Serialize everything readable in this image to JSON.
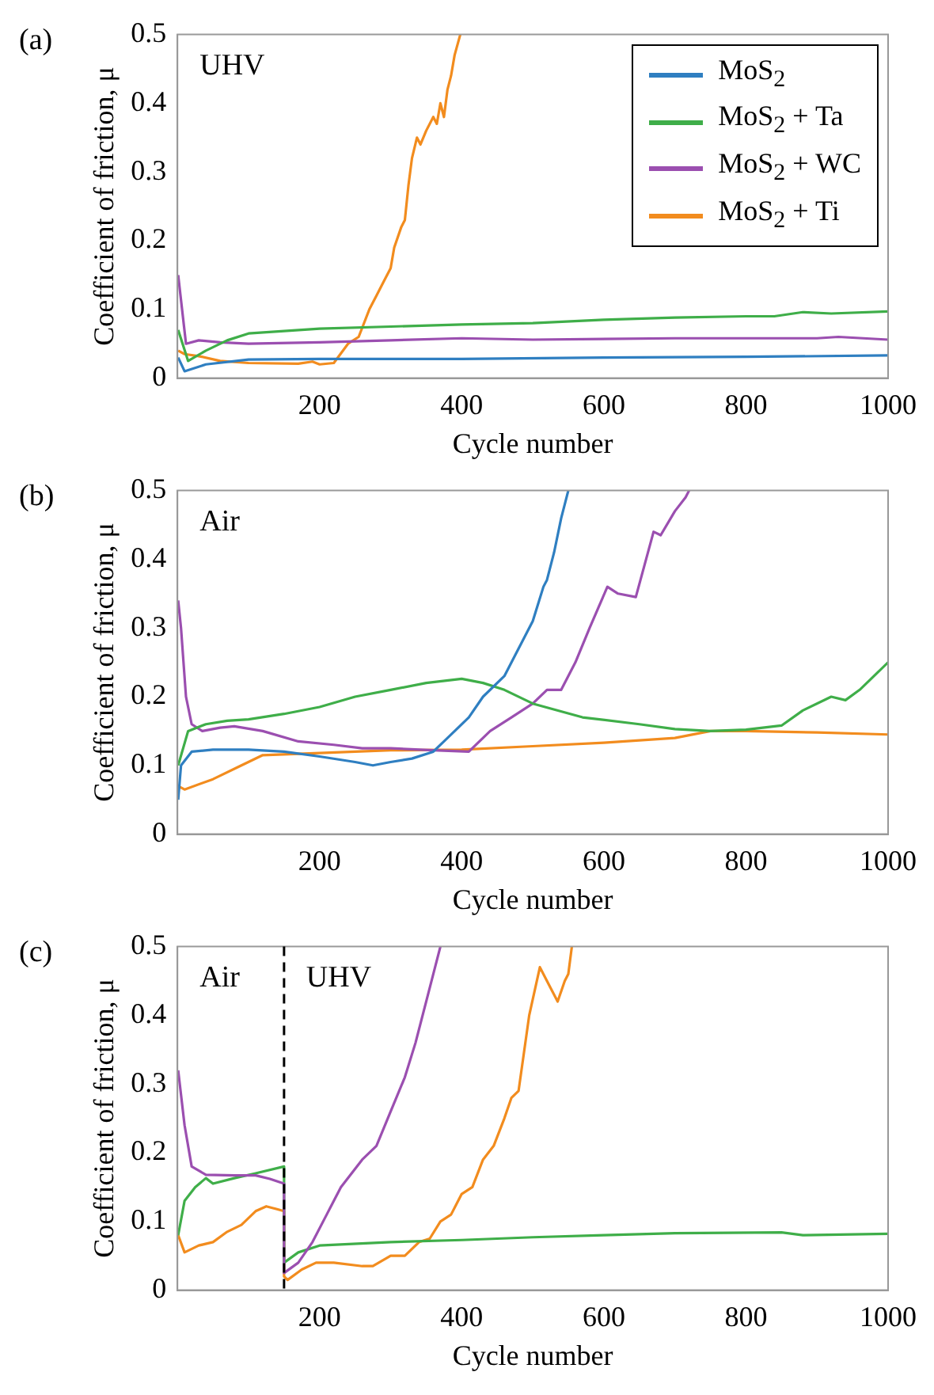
{
  "chart_data": [
    {
      "type": "line",
      "title": "(a)",
      "xlabel": "Cycle number",
      "ylabel": "Coefficient of friction, μ",
      "xlim": [
        0,
        1000
      ],
      "ylim": [
        0,
        0.5
      ],
      "xticks": [
        200,
        400,
        600,
        800,
        1000
      ],
      "yticks": [
        0,
        0.1,
        0.2,
        0.3,
        0.4,
        0.5
      ],
      "legend": "top right",
      "annotations": [
        "UHV"
      ],
      "series": [
        {
          "name": "MoS$_{2}$",
          "color": "#2f7fc1",
          "x": [
            1,
            10,
            40,
            100,
            200,
            400,
            600,
            800,
            1000
          ],
          "values": [
            0.03,
            0.01,
            0.02,
            0.027,
            0.028,
            0.028,
            0.03,
            0.031,
            0.033
          ]
        },
        {
          "name": "MoS$_{2}$ + Ta",
          "color": "#3fae49",
          "x": [
            1,
            15,
            40,
            70,
            100,
            200,
            300,
            400,
            500,
            600,
            700,
            800,
            840,
            880,
            920,
            1000
          ],
          "values": [
            0.07,
            0.025,
            0.04,
            0.055,
            0.065,
            0.072,
            0.075,
            0.078,
            0.08,
            0.085,
            0.088,
            0.09,
            0.09,
            0.096,
            0.094,
            0.097
          ]
        },
        {
          "name": "MoS$_{2}$ + WC",
          "color": "#9b4fb0",
          "x": [
            1,
            12,
            30,
            60,
            100,
            200,
            300,
            400,
            500,
            700,
            900,
            930,
            1000
          ],
          "values": [
            0.15,
            0.05,
            0.055,
            0.052,
            0.05,
            0.052,
            0.055,
            0.058,
            0.056,
            0.058,
            0.058,
            0.06,
            0.056
          ]
        },
        {
          "name": "MoS$_{2}$ + Ti",
          "color": "#f28c1e",
          "x": [
            1,
            10,
            30,
            60,
            100,
            170,
            190,
            200,
            220,
            240,
            255,
            270,
            280,
            290,
            300,
            305,
            315,
            320,
            325,
            330,
            337,
            342,
            350,
            360,
            365,
            370,
            375,
            380,
            385,
            390,
            398
          ],
          "values": [
            0.04,
            0.035,
            0.032,
            0.025,
            0.022,
            0.021,
            0.024,
            0.02,
            0.022,
            0.05,
            0.06,
            0.1,
            0.12,
            0.14,
            0.16,
            0.19,
            0.22,
            0.23,
            0.28,
            0.32,
            0.35,
            0.34,
            0.36,
            0.38,
            0.37,
            0.4,
            0.38,
            0.42,
            0.44,
            0.47,
            0.5
          ]
        }
      ]
    },
    {
      "type": "line",
      "title": "(b)",
      "xlabel": "Cycle number",
      "ylabel": "Coefficient of friction, μ",
      "xlim": [
        0,
        1000
      ],
      "ylim": [
        0,
        0.5
      ],
      "xticks": [
        200,
        400,
        600,
        800,
        1000
      ],
      "yticks": [
        0,
        0.1,
        0.2,
        0.3,
        0.4,
        0.5
      ],
      "annotations": [
        "Air"
      ],
      "series": [
        {
          "color": "#2f7fc1",
          "x": [
            1,
            5,
            20,
            50,
            100,
            150,
            200,
            250,
            275,
            300,
            330,
            360,
            380,
            410,
            430,
            460,
            480,
            500,
            515,
            520,
            530,
            540,
            550
          ],
          "values": [
            0.05,
            0.1,
            0.12,
            0.123,
            0.123,
            0.12,
            0.113,
            0.105,
            0.1,
            0.105,
            0.11,
            0.12,
            0.14,
            0.17,
            0.2,
            0.23,
            0.27,
            0.31,
            0.36,
            0.37,
            0.41,
            0.46,
            0.5
          ]
        },
        {
          "color": "#3fae49",
          "x": [
            1,
            15,
            40,
            70,
            100,
            150,
            200,
            250,
            300,
            350,
            400,
            430,
            460,
            500,
            570,
            650,
            700,
            750,
            800,
            850,
            880,
            920,
            940,
            960,
            1000
          ],
          "values": [
            0.1,
            0.15,
            0.16,
            0.165,
            0.167,
            0.175,
            0.185,
            0.2,
            0.21,
            0.22,
            0.226,
            0.22,
            0.21,
            0.19,
            0.17,
            0.16,
            0.153,
            0.15,
            0.152,
            0.158,
            0.18,
            0.2,
            0.195,
            0.21,
            0.25
          ]
        },
        {
          "color": "#9b4fb0",
          "x": [
            1,
            5,
            12,
            20,
            35,
            60,
            80,
            120,
            170,
            220,
            260,
            300,
            360,
            410,
            440,
            470,
            500,
            520,
            540,
            560,
            580,
            605,
            620,
            645,
            670,
            680,
            700,
            715,
            720
          ],
          "values": [
            0.34,
            0.3,
            0.2,
            0.16,
            0.15,
            0.155,
            0.157,
            0.15,
            0.135,
            0.13,
            0.125,
            0.125,
            0.122,
            0.12,
            0.15,
            0.17,
            0.19,
            0.21,
            0.21,
            0.25,
            0.3,
            0.36,
            0.35,
            0.345,
            0.44,
            0.435,
            0.47,
            0.49,
            0.5
          ]
        },
        {
          "color": "#f28c1e",
          "x": [
            1,
            10,
            50,
            90,
            120,
            200,
            300,
            400,
            500,
            600,
            700,
            750,
            800,
            900,
            1000
          ],
          "values": [
            0.07,
            0.065,
            0.08,
            0.1,
            0.115,
            0.118,
            0.122,
            0.123,
            0.128,
            0.133,
            0.14,
            0.15,
            0.15,
            0.148,
            0.145
          ]
        }
      ]
    },
    {
      "type": "line",
      "title": "(c)",
      "xlabel": "Cycle number",
      "ylabel": "Coefficient of friction, μ",
      "xlim": [
        0,
        1000
      ],
      "ylim": [
        0,
        0.5
      ],
      "xticks": [
        200,
        400,
        600,
        800,
        1000
      ],
      "yticks": [
        0,
        0.1,
        0.2,
        0.3,
        0.4,
        0.5
      ],
      "annotations": [
        "Air",
        "UHV"
      ],
      "ref_lines": [
        {
          "axis": "x",
          "value": 150,
          "color": "#000000",
          "line_style": "dashed"
        }
      ],
      "series": [
        {
          "color": "#9b4fb0",
          "x": [
            1,
            10,
            20,
            40,
            80,
            110,
            130,
            150,
            150,
            170,
            190,
            210,
            230,
            260,
            280,
            300,
            320,
            335,
            350,
            370
          ],
          "values": [
            0.32,
            0.24,
            0.18,
            0.168,
            0.167,
            0.167,
            0.162,
            0.155,
            0.025,
            0.04,
            0.07,
            0.11,
            0.15,
            0.19,
            0.21,
            0.26,
            0.31,
            0.36,
            0.42,
            0.5
          ]
        },
        {
          "color": "#3fae49",
          "x": [
            1,
            10,
            25,
            40,
            50,
            80,
            110,
            150,
            150,
            170,
            200,
            300,
            400,
            500,
            600,
            700,
            850,
            880,
            1000
          ],
          "values": [
            0.08,
            0.13,
            0.15,
            0.163,
            0.155,
            0.163,
            0.17,
            0.18,
            0.04,
            0.055,
            0.065,
            0.07,
            0.073,
            0.077,
            0.08,
            0.083,
            0.084,
            0.08,
            0.082
          ]
        },
        {
          "color": "#f28c1e",
          "x": [
            1,
            10,
            30,
            50,
            70,
            90,
            110,
            125,
            140,
            150,
            150,
            155,
            175,
            195,
            220,
            260,
            275,
            300,
            320,
            340,
            355,
            370,
            385,
            400,
            415,
            430,
            445,
            460,
            470,
            480,
            495,
            510,
            525,
            535,
            545,
            550,
            555
          ],
          "values": [
            0.08,
            0.055,
            0.065,
            0.07,
            0.085,
            0.095,
            0.115,
            0.122,
            0.118,
            0.115,
            0.02,
            0.015,
            0.03,
            0.04,
            0.04,
            0.035,
            0.035,
            0.05,
            0.05,
            0.07,
            0.075,
            0.1,
            0.11,
            0.14,
            0.15,
            0.19,
            0.21,
            0.25,
            0.28,
            0.29,
            0.4,
            0.47,
            0.44,
            0.42,
            0.45,
            0.46,
            0.5
          ]
        }
      ]
    }
  ]
}
